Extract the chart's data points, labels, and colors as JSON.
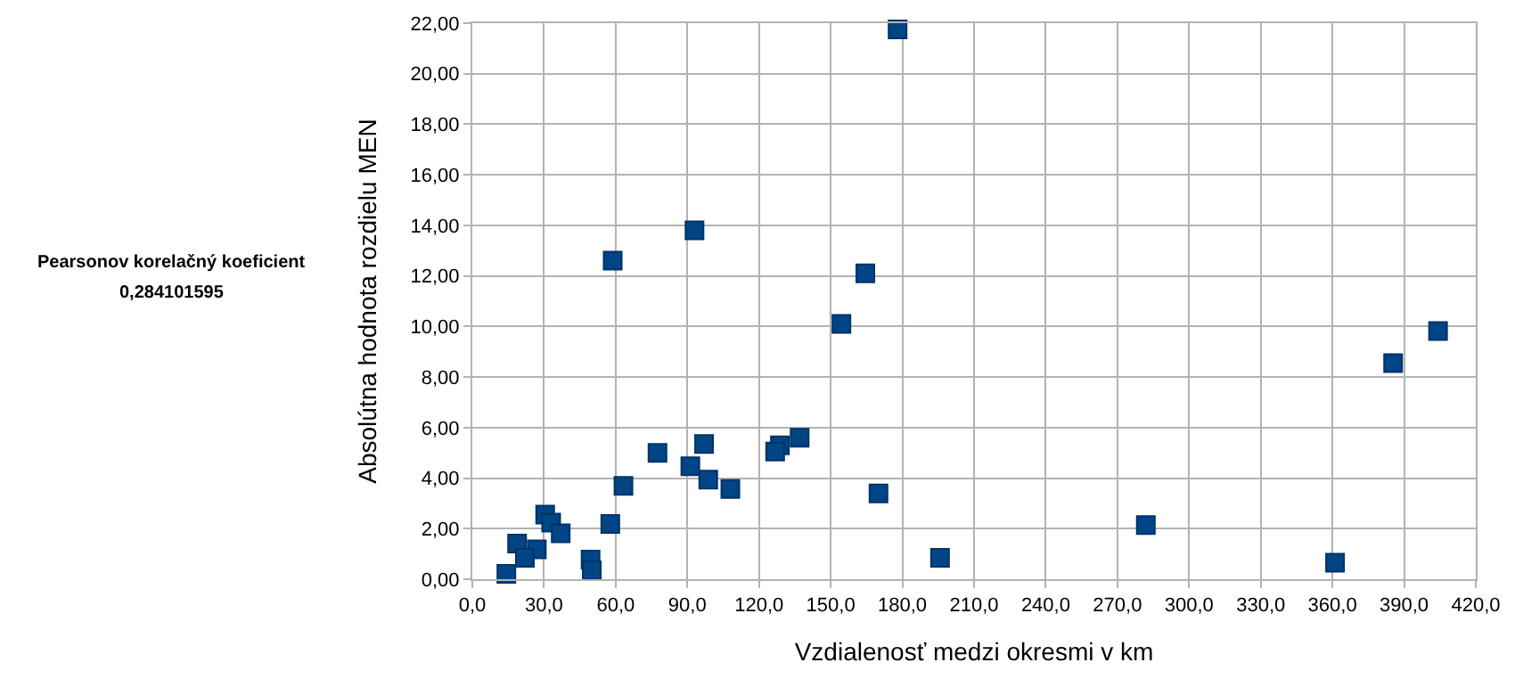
{
  "chart_data": {
    "type": "scatter",
    "xlabel": "Vzdialenosť medzi okresmi v km",
    "ylabel": "Absolútna hodnota rozdielu MEN",
    "annotations": [
      "Pearsonov korelačný koeficient",
      "0,284101595"
    ],
    "x": [
      178,
      93,
      58.75,
      164.5,
      154.5,
      137,
      128.75,
      126.75,
      97,
      77.5,
      91.25,
      98.75,
      108,
      170,
      63.25,
      57.75,
      30.5,
      33,
      37,
      18.75,
      27,
      22,
      49.5,
      50,
      14.25,
      195.75,
      404.2,
      385.4,
      281.9,
      361.1
    ],
    "series": [
      {
        "color": "#004586",
        "values": [
          21.75,
          13.8,
          12.6,
          12.1,
          10.1,
          5.6,
          5.3,
          5.05,
          5.35,
          5.0,
          4.47,
          3.94,
          3.57,
          3.39,
          3.69,
          2.19,
          2.56,
          2.24,
          1.82,
          1.41,
          1.18,
          0.85,
          0.78,
          0.35,
          0.21,
          0.85,
          9.82,
          8.55,
          2.14,
          0.65
        ]
      }
    ],
    "xlim": [
      0,
      420
    ],
    "ylim": [
      0,
      22
    ],
    "xticks": [
      {
        "value": 0,
        "label": "0,0"
      },
      {
        "value": 30,
        "label": "30,0"
      },
      {
        "value": 60,
        "label": "60,0"
      },
      {
        "value": 90,
        "label": "90,0"
      },
      {
        "value": 120,
        "label": "120,0"
      },
      {
        "value": 150,
        "label": "150,0"
      },
      {
        "value": 180,
        "label": "180,0"
      },
      {
        "value": 210,
        "label": "210,0"
      },
      {
        "value": 240,
        "label": "240,0"
      },
      {
        "value": 270,
        "label": "270,0"
      },
      {
        "value": 300,
        "label": "300,0"
      },
      {
        "value": 330,
        "label": "330,0"
      },
      {
        "value": 360,
        "label": "360,0"
      },
      {
        "value": 390,
        "label": "390,0"
      },
      {
        "value": 420,
        "label": "420,0"
      }
    ],
    "yticks": [
      {
        "value": 0,
        "label": "0,00"
      },
      {
        "value": 2,
        "label": "2,00"
      },
      {
        "value": 4,
        "label": "4,00"
      },
      {
        "value": 6,
        "label": "6,00"
      },
      {
        "value": 8,
        "label": "8,00"
      },
      {
        "value": 10,
        "label": "10,00"
      },
      {
        "value": 12,
        "label": "12,00"
      },
      {
        "value": 14,
        "label": "14,00"
      },
      {
        "value": 16,
        "label": "16,00"
      },
      {
        "value": 18,
        "label": "18,00"
      },
      {
        "value": 20,
        "label": "20,00"
      },
      {
        "value": 22,
        "label": "22,00"
      }
    ],
    "grid": true,
    "marker": "square",
    "legend": false
  }
}
